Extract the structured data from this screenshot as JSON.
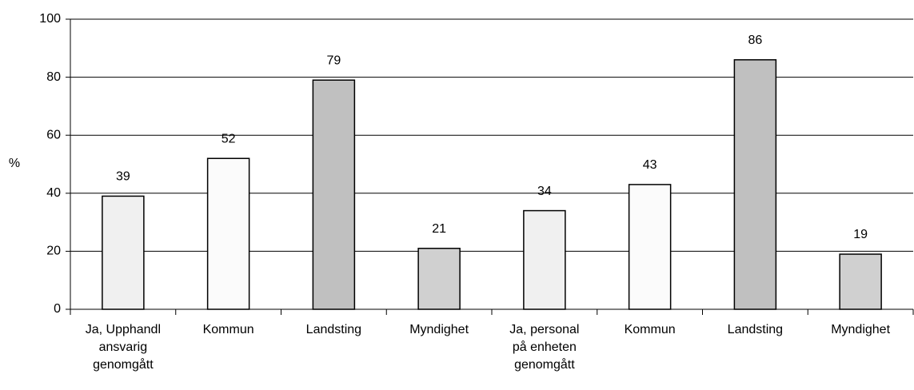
{
  "chart_data": {
    "type": "bar",
    "ylabel": "%",
    "categories": [
      "Ja, Upphandl\nansvarig\ngenomgått",
      "Kommun",
      "Landsting",
      "Myndighet",
      "Ja, personal\npå enheten\ngenomgått",
      "Kommun",
      "Landsting",
      "Myndighet"
    ],
    "values": [
      39,
      52,
      79,
      21,
      34,
      43,
      86,
      19
    ],
    "colors": [
      "#f0f0f0",
      "#fbfbfb",
      "#c0c0c0",
      "#d0d0d0",
      "#f0f0f0",
      "#fbfbfb",
      "#c0c0c0",
      "#d0d0d0"
    ],
    "ylim": [
      0,
      100
    ],
    "yticks": [
      0,
      20,
      40,
      60,
      80,
      100
    ],
    "grid": true
  }
}
